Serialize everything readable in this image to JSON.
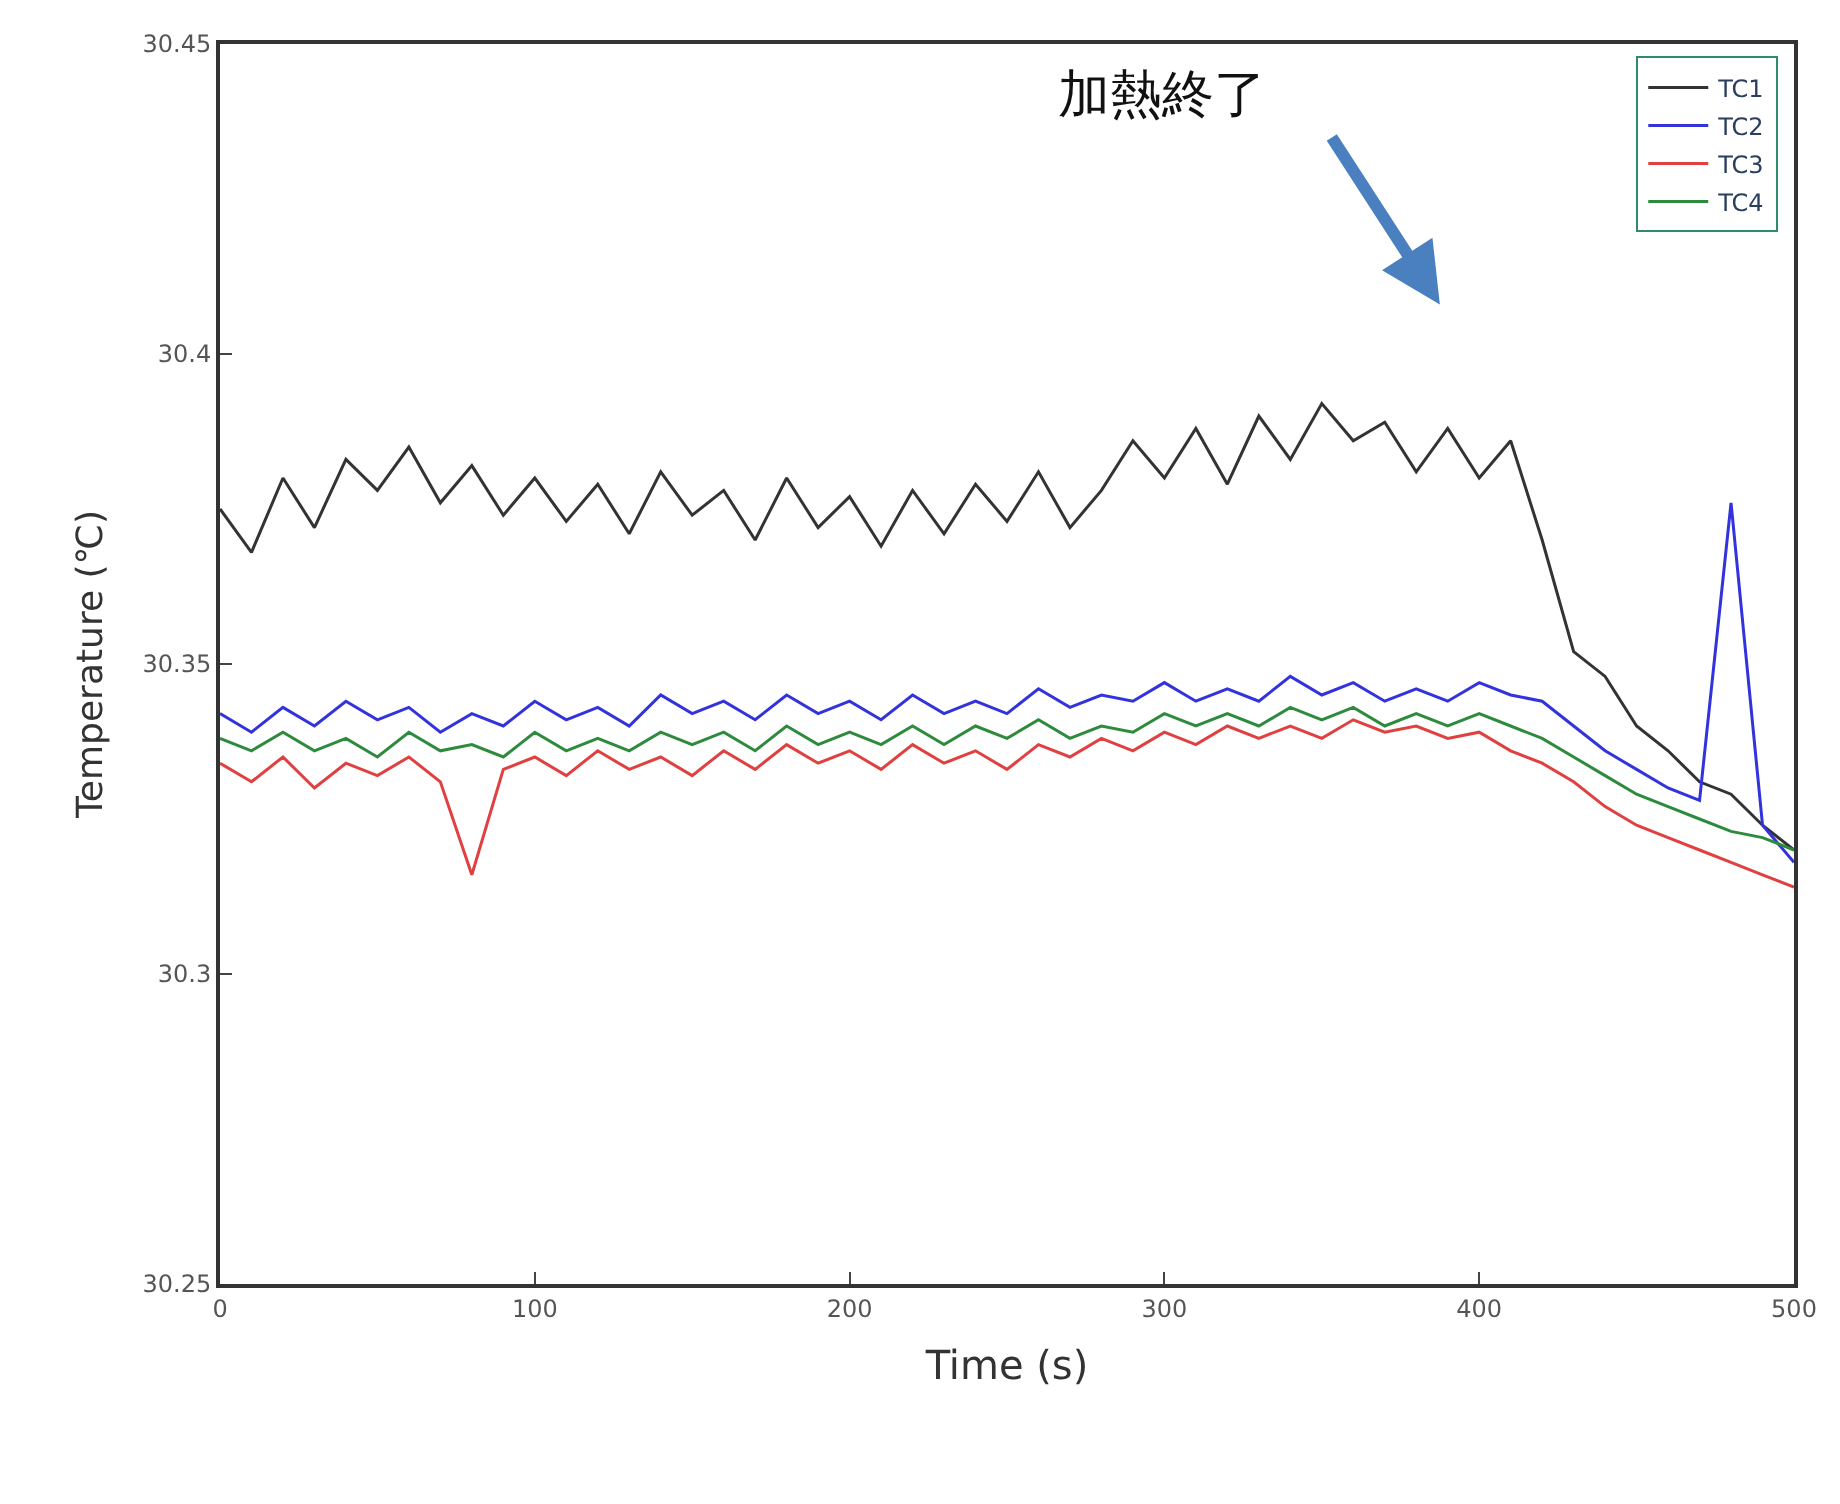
{
  "chart_data": {
    "type": "line",
    "xlabel": "Time (s)",
    "ylabel": "Temperature (℃)",
    "x": [
      0,
      10,
      20,
      30,
      40,
      50,
      60,
      70,
      80,
      90,
      100,
      110,
      120,
      130,
      140,
      150,
      160,
      170,
      180,
      190,
      200,
      210,
      220,
      230,
      240,
      250,
      260,
      270,
      280,
      290,
      300,
      310,
      320,
      330,
      340,
      350,
      360,
      370,
      380,
      390,
      400,
      410,
      420,
      430,
      440,
      450,
      460,
      470,
      480,
      490,
      500
    ],
    "series": [
      {
        "name": "TC1",
        "color": "#333333",
        "values": [
          30.375,
          30.368,
          30.38,
          30.372,
          30.383,
          30.378,
          30.385,
          30.376,
          30.382,
          30.374,
          30.38,
          30.373,
          30.379,
          30.371,
          30.381,
          30.374,
          30.378,
          30.37,
          30.38,
          30.372,
          30.377,
          30.369,
          30.378,
          30.371,
          30.379,
          30.373,
          30.381,
          30.372,
          30.378,
          30.386,
          30.38,
          30.388,
          30.379,
          30.39,
          30.383,
          30.392,
          30.386,
          30.389,
          30.381,
          30.388,
          30.38,
          30.386,
          30.37,
          30.352,
          30.348,
          30.34,
          30.336,
          30.331,
          30.329,
          30.324,
          30.32
        ]
      },
      {
        "name": "TC2",
        "color": "#3333dd",
        "values": [
          30.342,
          30.339,
          30.343,
          30.34,
          30.344,
          30.341,
          30.343,
          30.339,
          30.342,
          30.34,
          30.344,
          30.341,
          30.343,
          30.34,
          30.345,
          30.342,
          30.344,
          30.341,
          30.345,
          30.342,
          30.344,
          30.341,
          30.345,
          30.342,
          30.344,
          30.342,
          30.346,
          30.343,
          30.345,
          30.344,
          30.347,
          30.344,
          30.346,
          30.344,
          30.348,
          30.345,
          30.347,
          30.344,
          30.346,
          30.344,
          30.347,
          30.345,
          30.344,
          30.34,
          30.336,
          30.333,
          30.33,
          30.328,
          30.376,
          30.324,
          30.318
        ]
      },
      {
        "name": "TC3",
        "color": "#e04040",
        "values": [
          30.334,
          30.331,
          30.335,
          30.33,
          30.334,
          30.332,
          30.335,
          30.331,
          30.316,
          30.333,
          30.335,
          30.332,
          30.336,
          30.333,
          30.335,
          30.332,
          30.336,
          30.333,
          30.337,
          30.334,
          30.336,
          30.333,
          30.337,
          30.334,
          30.336,
          30.333,
          30.337,
          30.335,
          30.338,
          30.336,
          30.339,
          30.337,
          30.34,
          30.338,
          30.34,
          30.338,
          30.341,
          30.339,
          30.34,
          30.338,
          30.339,
          30.336,
          30.334,
          30.331,
          30.327,
          30.324,
          30.322,
          30.32,
          30.318,
          30.316,
          30.314
        ]
      },
      {
        "name": "TC4",
        "color": "#2e8b3e",
        "values": [
          30.338,
          30.336,
          30.339,
          30.336,
          30.338,
          30.335,
          30.339,
          30.336,
          30.337,
          30.335,
          30.339,
          30.336,
          30.338,
          30.336,
          30.339,
          30.337,
          30.339,
          30.336,
          30.34,
          30.337,
          30.339,
          30.337,
          30.34,
          30.337,
          30.34,
          30.338,
          30.341,
          30.338,
          30.34,
          30.339,
          30.342,
          30.34,
          30.342,
          30.34,
          30.343,
          30.341,
          30.343,
          30.34,
          30.342,
          30.34,
          30.342,
          30.34,
          30.338,
          30.335,
          30.332,
          30.329,
          30.327,
          30.325,
          30.323,
          30.322,
          30.32
        ]
      }
    ],
    "xlim": [
      0,
      500
    ],
    "xticks": [
      0,
      100,
      200,
      300,
      400,
      500
    ],
    "ylim": [
      30.25,
      30.45
    ],
    "yticks": [
      30.25,
      30.3,
      30.35,
      30.4,
      30.45
    ],
    "annotations": [
      "加熱終了"
    ],
    "legend": "top right",
    "marker": "none",
    "line_style": "solid"
  }
}
